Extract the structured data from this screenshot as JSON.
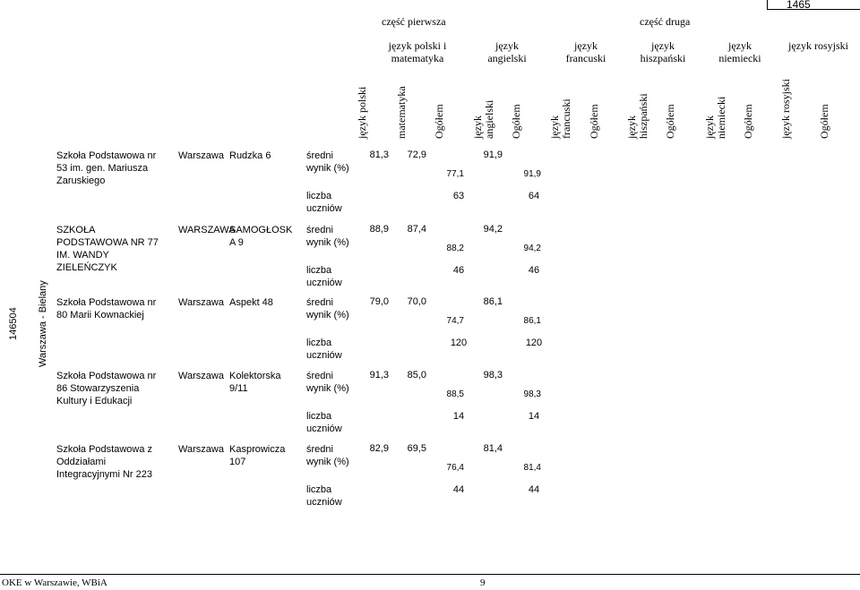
{
  "page_number_top": "1465",
  "parts": {
    "first": "część pierwsza",
    "second": "część druga"
  },
  "subjects": [
    "język polski i matematyka",
    "język angielski",
    "język francuski",
    "język hiszpański",
    "język niemiecki",
    "język rosyjski"
  ],
  "columns": [
    [
      "język polski"
    ],
    [
      "matematyka"
    ],
    [
      "Ogółem"
    ],
    [
      "język",
      "angielski"
    ],
    [
      "Ogółem"
    ],
    [
      "język",
      "francuski"
    ],
    [
      "Ogółem"
    ],
    [
      "język",
      "hiszpański"
    ],
    [
      "Ogółem"
    ],
    [
      "język",
      "niemiecki"
    ],
    [
      "Ogółem"
    ],
    [
      "język rosyjski"
    ],
    [
      "Ogółem"
    ]
  ],
  "group": {
    "code": "146504",
    "district": "Warszawa - Bielany"
  },
  "labels": {
    "avg": "średni wynik (%)",
    "count": "liczba uczniów"
  },
  "schools": [
    {
      "name": "Szkoła Podstawowa nr 53 im. gen. Mariusza Zaruskiego",
      "city": "Warszawa",
      "street": "Rudzka 6",
      "polski": "81,3",
      "mat": "72,9",
      "ogolem1": "77,1",
      "ang": "91,9",
      "ang_total": "91,9",
      "count": "63",
      "count_total": "64"
    },
    {
      "name": "SZKOŁA PODSTAWOWA NR 77 IM. WANDY ZIELEŃCZYK",
      "city": "WARSZAWA",
      "street": "SAMOGŁOSK A 9",
      "polski": "88,9",
      "mat": "87,4",
      "ogolem1": "88,2",
      "ang": "94,2",
      "ang_total": "94,2",
      "count": "46",
      "count_total": "46"
    },
    {
      "name": "Szkoła Podstawowa nr 80 Marii Kownackiej",
      "city": "Warszawa",
      "street": "Aspekt 48",
      "polski": "79,0",
      "mat": "70,0",
      "ogolem1": "74,7",
      "ang": "86,1",
      "ang_total": "86,1",
      "count": "120",
      "count_total": "120"
    },
    {
      "name": "Szkoła Podstawowa nr 86 Stowarzyszenia Kultury i Edukacji",
      "city": "Warszawa",
      "street": "Kolektorska 9/11",
      "polski": "91,3",
      "mat": "85,0",
      "ogolem1": "88,5",
      "ang": "98,3",
      "ang_total": "98,3",
      "count": "14",
      "count_total": "14"
    },
    {
      "name": "Szkoła Podstawowa z Oddziałami Integracyjnymi Nr 223",
      "city": "Warszawa",
      "street": "Kasprowicza 107",
      "polski": "82,9",
      "mat": "69,5",
      "ogolem1": "76,4",
      "ang": "81,4",
      "ang_total": "81,4",
      "count": "44",
      "count_total": "44"
    }
  ],
  "footer": {
    "left": "OKE w Warszawie, WBiA",
    "page": "9"
  }
}
